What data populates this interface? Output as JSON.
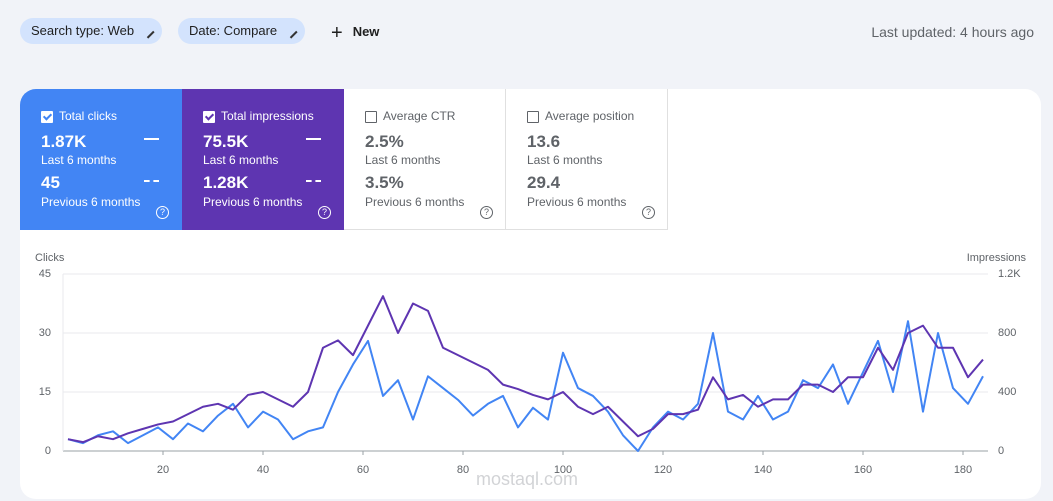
{
  "toolbar": {
    "filters": [
      "Search type: Web",
      "Date: Compare"
    ],
    "new_button": "New",
    "last_updated": "Last updated: 4 hours ago"
  },
  "metrics": [
    {
      "label": "Total clicks",
      "value": "1.87K",
      "period": "Last 6 months",
      "previous_value": "45",
      "previous_period": "Previous 6 months",
      "selected": true,
      "color": "#4285f4"
    },
    {
      "label": "Total impressions",
      "value": "75.5K",
      "period": "Last 6 months",
      "previous_value": "1.28K",
      "previous_period": "Previous 6 months",
      "selected": true,
      "color": "#5e35b1"
    },
    {
      "label": "Average CTR",
      "value": "2.5%",
      "period": "Last 6 months",
      "previous_value": "3.5%",
      "previous_period": "Previous 6 months",
      "selected": false
    },
    {
      "label": "Average position",
      "value": "13.6",
      "period": "Last 6 months",
      "previous_value": "29.4",
      "previous_period": "Previous 6 months",
      "selected": false
    }
  ],
  "chart_data": {
    "type": "line",
    "y_label": "Clicks",
    "y2_label": "Impressions",
    "x": [
      1,
      4,
      7,
      10,
      13,
      16,
      19,
      22,
      25,
      28,
      31,
      34,
      37,
      40,
      43,
      46,
      49,
      52,
      55,
      58,
      61,
      64,
      67,
      70,
      73,
      76,
      79,
      82,
      85,
      88,
      91,
      94,
      97,
      100,
      103,
      106,
      109,
      112,
      115,
      118,
      121,
      124,
      127,
      130,
      133,
      136,
      139,
      142,
      145,
      148,
      151,
      154,
      157,
      160,
      163,
      166,
      169,
      172,
      175,
      178,
      181,
      184
    ],
    "xlim": [
      0,
      185
    ],
    "xticks": [
      20,
      40,
      60,
      80,
      100,
      120,
      140,
      160,
      180
    ],
    "ylim": [
      0,
      45
    ],
    "yticks": [
      0,
      15,
      30,
      45
    ],
    "y2lim": [
      0,
      1200
    ],
    "y2ticks": [
      0,
      400,
      800,
      {
        "value": 1200,
        "label": "1.2K"
      }
    ],
    "grid": true,
    "series": [
      {
        "color": "#4285f4",
        "values": [
          3,
          2,
          4,
          5,
          2,
          4,
          6,
          3,
          7,
          5,
          9,
          12,
          6,
          10,
          8,
          3,
          5,
          6,
          15,
          22,
          28,
          14,
          18,
          8,
          19,
          16,
          13,
          9,
          12,
          14,
          6,
          11,
          8,
          25,
          16,
          14,
          10,
          4,
          0,
          6,
          10,
          8,
          12,
          30,
          10,
          8,
          14,
          8,
          10,
          18,
          16,
          22,
          12,
          20,
          28,
          15,
          33,
          10,
          30,
          16,
          12,
          19
        ]
      },
      {
        "color": "#5e35b1",
        "axis": "y2",
        "values": [
          80,
          60,
          100,
          80,
          120,
          150,
          180,
          200,
          250,
          300,
          320,
          280,
          380,
          400,
          350,
          300,
          400,
          700,
          750,
          650,
          850,
          1050,
          800,
          1000,
          950,
          700,
          650,
          600,
          550,
          450,
          420,
          380,
          350,
          400,
          300,
          250,
          300,
          200,
          100,
          150,
          250,
          250,
          280,
          500,
          350,
          380,
          300,
          350,
          350,
          450,
          450,
          400,
          500,
          500,
          700,
          550,
          800,
          850,
          700,
          700,
          500,
          620
        ]
      }
    ]
  },
  "watermark": "mostaql.com"
}
